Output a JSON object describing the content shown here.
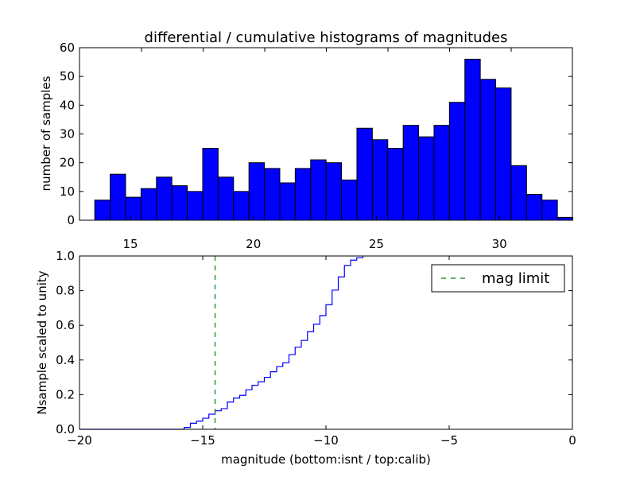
{
  "chart_data": [
    {
      "type": "bar",
      "title": "differential / cumulative histograms of magnitudes",
      "xlabel": "",
      "ylabel": "number of samples",
      "xlim": [
        12.93,
        32.97
      ],
      "ylim": [
        0,
        60
      ],
      "bin_start": 13.55,
      "bin_width": 0.627,
      "values": [
        7,
        16,
        8,
        11,
        15,
        12,
        10,
        25,
        15,
        10,
        20,
        18,
        13,
        18,
        21,
        20,
        14,
        32,
        28,
        25,
        33,
        29,
        33,
        41,
        56,
        49,
        46,
        19,
        9,
        7,
        1
      ],
      "xticks": [
        15,
        20,
        25,
        30
      ],
      "yticks": [
        0,
        10,
        20,
        30,
        40,
        50,
        60
      ],
      "color": "#0000ff"
    },
    {
      "type": "line",
      "xlabel": "magnitude (bottom:isnt / top:calib)",
      "ylabel": "Nsample scaled to unity",
      "xlim": [
        -20,
        0
      ],
      "ylim": [
        0,
        1
      ],
      "xticks": [
        -20,
        -15,
        -10,
        -5,
        0
      ],
      "yticks": [
        "0.0",
        "0.2",
        "0.4",
        "0.6",
        "0.8",
        "1.0"
      ],
      "step_edges_start": -15.75,
      "step_width": 0.25,
      "step_values": [
        0.011,
        0.035,
        0.047,
        0.064,
        0.087,
        0.107,
        0.119,
        0.157,
        0.18,
        0.196,
        0.228,
        0.254,
        0.274,
        0.3,
        0.332,
        0.362,
        0.384,
        0.431,
        0.474,
        0.513,
        0.563,
        0.606,
        0.656,
        0.719,
        0.803,
        0.879,
        0.945,
        0.976,
        0.99,
        1.0
      ],
      "mag_limit": -14.5,
      "legend": {
        "label": "mag limit",
        "position": "top-right"
      },
      "line_color": "#0000ff",
      "limit_color": "#007f00"
    }
  ]
}
